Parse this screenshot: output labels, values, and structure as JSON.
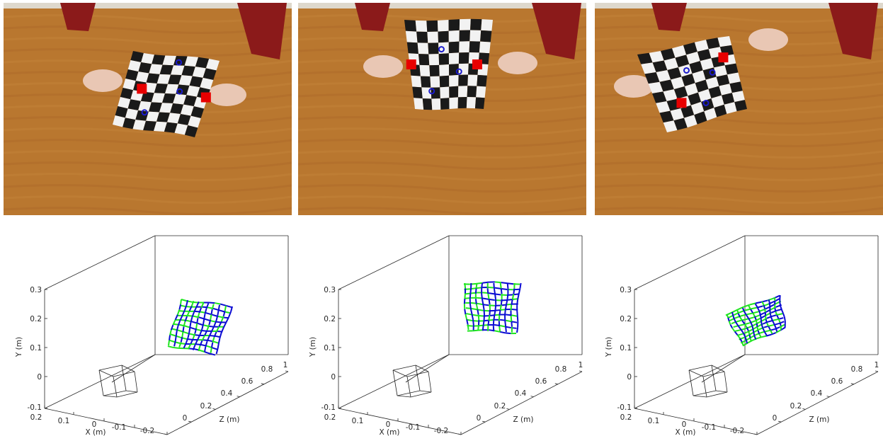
{
  "colors": {
    "table": "#b9772f",
    "sleeve": "#8b1a1a",
    "marker_red": "#e80000",
    "marker_blue": "#1a1acc",
    "mesh_blue": "#0a0ad2",
    "mesh_green": "#1ee51e"
  },
  "photos": [
    {
      "view": "left-tilt"
    },
    {
      "view": "front"
    },
    {
      "view": "right-tilt"
    }
  ],
  "plots": [
    {
      "ylabel": "Y (m)",
      "xlabel": "X (m)",
      "zlabel": "Z (m)",
      "y_ticks": [
        "0.3",
        "0.2",
        "0.1",
        "0",
        "-0.1"
      ],
      "x_ticks": [
        "0.2",
        "0.1",
        "0",
        "-0.1",
        "-0.2"
      ],
      "z_ticks": [
        "0",
        "0.2",
        "0.4",
        "0.6",
        "0.8",
        "1"
      ]
    },
    {
      "ylabel": "Y (m)",
      "xlabel": "X (m)",
      "zlabel": "Z (m)",
      "y_ticks": [
        "0.3",
        "0.2",
        "0.1",
        "0",
        "-0.1"
      ],
      "x_ticks": [
        "0.2",
        "0.1",
        "0",
        "-0.1",
        "-0.2"
      ],
      "z_ticks": [
        "0",
        "0.2",
        "0.4",
        "0.6",
        "0.8",
        "1"
      ]
    },
    {
      "ylabel": "Y (m)",
      "xlabel": "X (m)",
      "zlabel": "Z (m)",
      "y_ticks": [
        "0.3",
        "0.2",
        "0.1",
        "0",
        "-0.1"
      ],
      "x_ticks": [
        "0.2",
        "0.1",
        "0",
        "-0.1",
        "-0.2"
      ],
      "z_ticks": [
        "0",
        "0.2",
        "0.4",
        "0.6",
        "0.8",
        "1"
      ]
    }
  ]
}
